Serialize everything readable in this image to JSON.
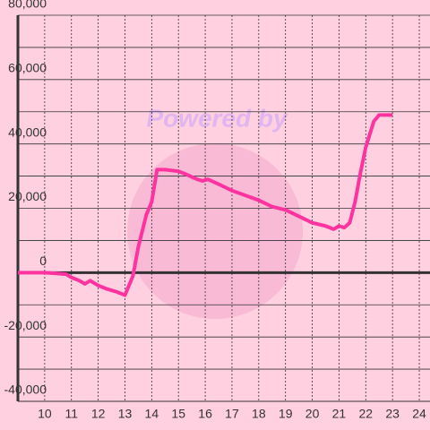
{
  "chart_data": {
    "type": "line",
    "watermark": "Powered by",
    "x": [
      9,
      10,
      10.5,
      10.8,
      11,
      11.3,
      11.5,
      11.7,
      12,
      12.3,
      12.7,
      13,
      13.3,
      13.5,
      13.8,
      14,
      14.2,
      14.5,
      15,
      15.3,
      15.7,
      15.9,
      16.1,
      16.5,
      17,
      17.5,
      18,
      18.5,
      19,
      19.5,
      20,
      20.5,
      20.8,
      21,
      21.2,
      21.4,
      21.6,
      21.8,
      22,
      22.3,
      22.5,
      23
    ],
    "series": [
      {
        "color": "#ff33a0",
        "values": [
          0,
          0,
          -300,
          -500,
          -1500,
          -2500,
          -3500,
          -2500,
          -4000,
          -5000,
          -6000,
          -7000,
          -1000,
          8000,
          18000,
          22000,
          32000,
          32000,
          31500,
          30500,
          29000,
          28500,
          29000,
          27500,
          25500,
          24000,
          22500,
          20500,
          19500,
          17500,
          15500,
          14500,
          13500,
          14500,
          14000,
          15500,
          22000,
          31000,
          39000,
          47000,
          49000,
          49000
        ]
      }
    ],
    "xlim": [
      9,
      24.4
    ],
    "xticks": [
      10,
      11,
      12,
      13,
      14,
      15,
      16,
      17,
      18,
      19,
      20,
      21,
      22,
      23,
      24
    ],
    "ylim": [
      -40000,
      80000
    ],
    "yticks": [
      {
        "value": -40000,
        "label": "-40,000"
      },
      {
        "value": -20000,
        "label": "-20,000"
      },
      0,
      {
        "value": 20000,
        "label": "20,000"
      },
      {
        "value": 40000,
        "label": "40,000"
      },
      {
        "value": 60000,
        "label": "60,000"
      },
      {
        "value": 80000,
        "label": "80,000"
      }
    ],
    "grid": true
  }
}
